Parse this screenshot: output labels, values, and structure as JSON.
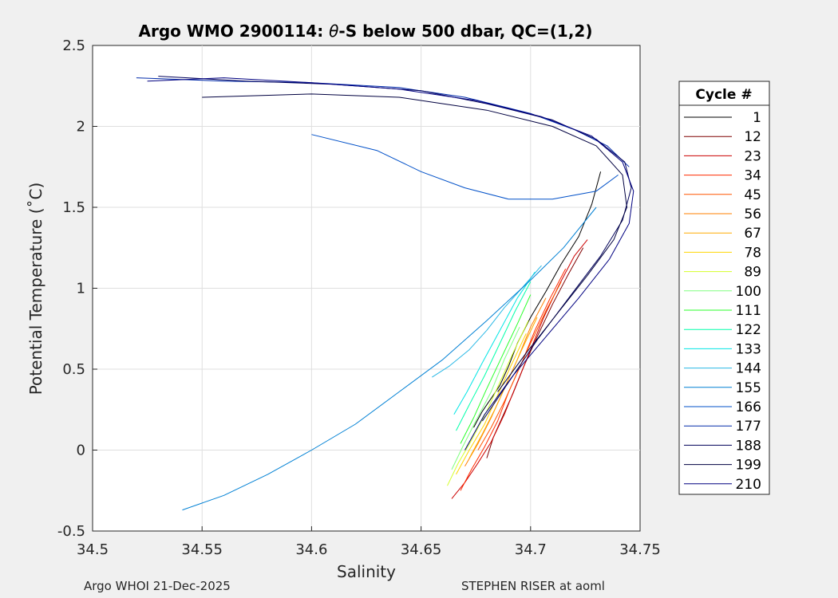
{
  "chart_data": {
    "type": "line",
    "title_prefix": "Argo WMO 2900114: ",
    "title_symbol": "θ",
    "title_suffix": "-S below 500 dbar,  QC=(1,2)",
    "xlabel": "Salinity",
    "ylabel": "Potential Temperature (˚C)",
    "xlim": [
      34.5,
      34.75
    ],
    "ylim": [
      -0.5,
      2.5
    ],
    "xticks": [
      "34.5",
      "34.55",
      "34.6",
      "34.65",
      "34.7",
      "34.75"
    ],
    "yticks": [
      "2.5",
      "2",
      "1.5",
      "1",
      "0.5",
      "0",
      "-0.5"
    ],
    "grid": true,
    "legend": {
      "title": "Cycle #",
      "position": "outside-right",
      "entries": [
        "1",
        "12",
        "23",
        "34",
        "45",
        "56",
        "67",
        "78",
        "89",
        "100",
        "111",
        "122",
        "133",
        "144",
        "155",
        "166",
        "177",
        "188",
        "199",
        "210"
      ]
    },
    "series": [
      {
        "name": "1",
        "color": "#000000",
        "points": [
          [
            34.674,
            0.14
          ],
          [
            34.676,
            0.19
          ],
          [
            34.678,
            0.24
          ],
          [
            34.68,
            0.28
          ],
          [
            34.683,
            0.34
          ],
          [
            34.686,
            0.4
          ],
          [
            34.69,
            0.52
          ],
          [
            34.694,
            0.66
          ],
          [
            34.7,
            0.82
          ],
          [
            34.707,
            0.98
          ],
          [
            34.714,
            1.15
          ],
          [
            34.722,
            1.32
          ],
          [
            34.728,
            1.52
          ],
          [
            34.732,
            1.72
          ]
        ]
      },
      {
        "name": "12",
        "color": "#7f0000",
        "points": [
          [
            34.68,
            -0.05
          ],
          [
            34.683,
            0.08
          ],
          [
            34.687,
            0.2
          ],
          [
            34.692,
            0.35
          ],
          [
            34.697,
            0.52
          ],
          [
            34.703,
            0.7
          ],
          [
            34.71,
            0.9
          ],
          [
            34.717,
            1.08
          ],
          [
            34.724,
            1.25
          ]
        ]
      },
      {
        "name": "23",
        "color": "#cc0000",
        "points": [
          [
            34.664,
            -0.3
          ],
          [
            34.67,
            -0.2
          ],
          [
            34.676,
            -0.08
          ],
          [
            34.682,
            0.05
          ],
          [
            34.688,
            0.22
          ],
          [
            34.694,
            0.42
          ],
          [
            34.7,
            0.62
          ],
          [
            34.706,
            0.82
          ],
          [
            34.713,
            1.02
          ],
          [
            34.72,
            1.2
          ],
          [
            34.726,
            1.3
          ]
        ]
      },
      {
        "name": "34",
        "color": "#ff2a00",
        "points": [
          [
            34.668,
            -0.25
          ],
          [
            34.673,
            -0.12
          ],
          [
            34.679,
            0.02
          ],
          [
            34.685,
            0.18
          ],
          [
            34.69,
            0.36
          ],
          [
            34.696,
            0.54
          ],
          [
            34.702,
            0.74
          ],
          [
            34.709,
            0.94
          ],
          [
            34.716,
            1.12
          ]
        ]
      },
      {
        "name": "45",
        "color": "#ff5500",
        "points": [
          [
            34.676,
            0.0
          ],
          [
            34.682,
            0.14
          ],
          [
            34.688,
            0.3
          ],
          [
            34.694,
            0.48
          ],
          [
            34.7,
            0.66
          ],
          [
            34.707,
            0.86
          ],
          [
            34.714,
            1.04
          ]
        ]
      },
      {
        "name": "56",
        "color": "#ff8000",
        "points": [
          [
            34.67,
            -0.1
          ],
          [
            34.676,
            0.04
          ],
          [
            34.682,
            0.2
          ],
          [
            34.688,
            0.38
          ],
          [
            34.694,
            0.56
          ],
          [
            34.7,
            0.76
          ],
          [
            34.707,
            0.94
          ]
        ]
      },
      {
        "name": "67",
        "color": "#ffaa00",
        "points": [
          [
            34.672,
            -0.05
          ],
          [
            34.678,
            0.1
          ],
          [
            34.684,
            0.26
          ],
          [
            34.69,
            0.44
          ],
          [
            34.696,
            0.62
          ],
          [
            34.703,
            0.82
          ]
        ]
      },
      {
        "name": "78",
        "color": "#ffd400",
        "points": [
          [
            34.666,
            -0.15
          ],
          [
            34.672,
            0.0
          ],
          [
            34.679,
            0.16
          ],
          [
            34.685,
            0.34
          ],
          [
            34.691,
            0.52
          ],
          [
            34.698,
            0.72
          ]
        ]
      },
      {
        "name": "89",
        "color": "#d4ff2a",
        "points": [
          [
            34.662,
            -0.22
          ],
          [
            34.667,
            -0.08
          ],
          [
            34.673,
            0.06
          ],
          [
            34.68,
            0.24
          ],
          [
            34.686,
            0.42
          ],
          [
            34.692,
            0.6
          ],
          [
            34.699,
            0.8
          ]
        ]
      },
      {
        "name": "100",
        "color": "#80ff80",
        "points": [
          [
            34.664,
            -0.12
          ],
          [
            34.669,
            0.02
          ],
          [
            34.675,
            0.18
          ],
          [
            34.682,
            0.36
          ],
          [
            34.688,
            0.56
          ],
          [
            34.695,
            0.76
          ]
        ]
      },
      {
        "name": "111",
        "color": "#2aff2a",
        "points": [
          [
            34.668,
            0.04
          ],
          [
            34.674,
            0.2
          ],
          [
            34.68,
            0.38
          ],
          [
            34.687,
            0.58
          ],
          [
            34.694,
            0.78
          ],
          [
            34.7,
            0.96
          ]
        ]
      },
      {
        "name": "122",
        "color": "#00ffaa",
        "points": [
          [
            34.666,
            0.12
          ],
          [
            34.672,
            0.28
          ],
          [
            34.679,
            0.46
          ],
          [
            34.686,
            0.66
          ],
          [
            34.693,
            0.86
          ],
          [
            34.7,
            1.04
          ]
        ]
      },
      {
        "name": "133",
        "color": "#00e5e5",
        "points": [
          [
            34.665,
            0.22
          ],
          [
            34.671,
            0.36
          ],
          [
            34.678,
            0.54
          ],
          [
            34.686,
            0.74
          ],
          [
            34.694,
            0.94
          ],
          [
            34.702,
            1.1
          ]
        ]
      },
      {
        "name": "144",
        "color": "#2ab8e5",
        "points": [
          [
            34.655,
            0.45
          ],
          [
            34.663,
            0.52
          ],
          [
            34.672,
            0.62
          ],
          [
            34.68,
            0.74
          ],
          [
            34.688,
            0.88
          ],
          [
            34.696,
            1.0
          ],
          [
            34.705,
            1.14
          ]
        ]
      },
      {
        "name": "155",
        "color": "#0080d4",
        "points": [
          [
            34.541,
            -0.37
          ],
          [
            34.56,
            -0.28
          ],
          [
            34.58,
            -0.15
          ],
          [
            34.6,
            0.0
          ],
          [
            34.62,
            0.16
          ],
          [
            34.64,
            0.36
          ],
          [
            34.66,
            0.56
          ],
          [
            34.68,
            0.8
          ],
          [
            34.7,
            1.05
          ],
          [
            34.715,
            1.25
          ],
          [
            34.73,
            1.5
          ]
        ]
      },
      {
        "name": "166",
        "color": "#0050c8",
        "points": [
          [
            34.6,
            1.95
          ],
          [
            34.63,
            1.85
          ],
          [
            34.65,
            1.72
          ],
          [
            34.67,
            1.62
          ],
          [
            34.69,
            1.55
          ],
          [
            34.71,
            1.55
          ],
          [
            34.73,
            1.6
          ],
          [
            34.74,
            1.7
          ]
        ]
      },
      {
        "name": "177",
        "color": "#002aaa",
        "points": [
          [
            34.52,
            2.3
          ],
          [
            34.56,
            2.28
          ],
          [
            34.6,
            2.27
          ],
          [
            34.64,
            2.24
          ],
          [
            34.67,
            2.18
          ],
          [
            34.7,
            2.08
          ],
          [
            34.72,
            1.98
          ],
          [
            34.735,
            1.88
          ],
          [
            34.745,
            1.75
          ]
        ]
      },
      {
        "name": "188",
        "color": "#00005a",
        "points": [
          [
            34.53,
            2.31
          ],
          [
            34.57,
            2.28
          ],
          [
            34.61,
            2.26
          ],
          [
            34.65,
            2.22
          ],
          [
            34.68,
            2.14
          ],
          [
            34.71,
            2.04
          ],
          [
            34.73,
            1.92
          ],
          [
            34.743,
            1.78
          ],
          [
            34.746,
            1.62
          ],
          [
            34.742,
            1.42
          ],
          [
            34.732,
            1.2
          ],
          [
            34.718,
            0.95
          ],
          [
            34.703,
            0.68
          ],
          [
            34.69,
            0.42
          ],
          [
            34.678,
            0.18
          ]
        ]
      },
      {
        "name": "199",
        "color": "#000040",
        "points": [
          [
            34.55,
            2.18
          ],
          [
            34.6,
            2.2
          ],
          [
            34.64,
            2.18
          ],
          [
            34.68,
            2.1
          ],
          [
            34.71,
            2.0
          ],
          [
            34.73,
            1.88
          ],
          [
            34.742,
            1.7
          ],
          [
            34.744,
            1.5
          ],
          [
            34.738,
            1.3
          ],
          [
            34.726,
            1.08
          ],
          [
            34.712,
            0.84
          ],
          [
            34.698,
            0.6
          ],
          [
            34.685,
            0.36
          ]
        ]
      },
      {
        "name": "210",
        "color": "#000080",
        "points": [
          [
            34.525,
            2.28
          ],
          [
            34.56,
            2.3
          ],
          [
            34.6,
            2.27
          ],
          [
            34.64,
            2.23
          ],
          [
            34.675,
            2.16
          ],
          [
            34.705,
            2.06
          ],
          [
            34.728,
            1.94
          ],
          [
            34.742,
            1.78
          ],
          [
            34.747,
            1.6
          ],
          [
            34.745,
            1.4
          ],
          [
            34.736,
            1.18
          ],
          [
            34.722,
            0.94
          ],
          [
            34.707,
            0.7
          ],
          [
            34.692,
            0.46
          ],
          [
            34.679,
            0.22
          ],
          [
            34.67,
            0.0
          ]
        ]
      }
    ]
  },
  "footer": {
    "left": "Argo WHOI 21-Dec-2025",
    "right": "STEPHEN RISER at aoml"
  }
}
